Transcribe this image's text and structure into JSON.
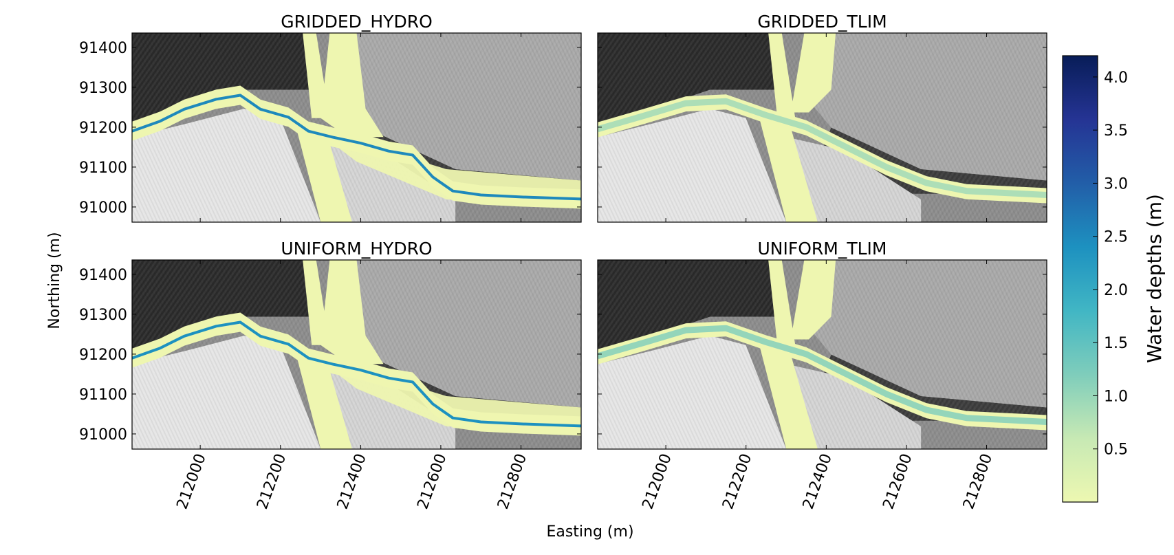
{
  "figure": {
    "xlabel": "Easting (m)",
    "ylabel": "Northing (m)"
  },
  "chart_data": [
    {
      "type": "heatmap",
      "title": "GRIDDED_HYDRO",
      "xlim": [
        211830,
        212950
      ],
      "ylim": [
        90962,
        91436
      ],
      "xticks": [
        212000,
        212200,
        212400,
        212600,
        212800
      ],
      "yticks": [
        91000,
        91100,
        91200,
        91300,
        91400
      ],
      "tick_labels_x": [
        "212000",
        "212200",
        "212400",
        "212600",
        "212800"
      ],
      "tick_labels_y": [
        "91000",
        "91100",
        "91200",
        "91300",
        "91400"
      ],
      "flood_extent": "wide",
      "main_channel_depth_m": 2.5,
      "channel": [
        [
          211830,
          91190
        ],
        [
          211900,
          91215
        ],
        [
          211960,
          91245
        ],
        [
          212040,
          91270
        ],
        [
          212100,
          91280
        ],
        [
          212150,
          91245
        ],
        [
          212220,
          91225
        ],
        [
          212270,
          91190
        ],
        [
          212330,
          91175
        ],
        [
          212400,
          91160
        ],
        [
          212470,
          91140
        ],
        [
          212530,
          91130
        ],
        [
          212580,
          91075
        ],
        [
          212630,
          91040
        ],
        [
          212700,
          91030
        ],
        [
          212800,
          91025
        ],
        [
          212950,
          91020
        ]
      ]
    },
    {
      "type": "heatmap",
      "title": "GRIDDED_TLIM",
      "xlim": [
        211830,
        212950
      ],
      "ylim": [
        90962,
        91436
      ],
      "xticks": [
        212000,
        212200,
        212400,
        212600,
        212800
      ],
      "yticks": [
        91000,
        91100,
        91200,
        91300,
        91400
      ],
      "tick_labels_x": [
        "212000",
        "212200",
        "212400",
        "212600",
        "212800"
      ],
      "tick_labels_y": [
        "91000",
        "91100",
        "91200",
        "91300",
        "91400"
      ],
      "flood_extent": "narrow",
      "main_channel_depth_m": 1.0,
      "channel": [
        [
          211830,
          91195
        ],
        [
          211950,
          91230
        ],
        [
          212050,
          91260
        ],
        [
          212150,
          91265
        ],
        [
          212250,
          91230
        ],
        [
          212350,
          91200
        ],
        [
          212450,
          91150
        ],
        [
          212550,
          91100
        ],
        [
          212650,
          91060
        ],
        [
          212750,
          91040
        ],
        [
          212950,
          91030
        ]
      ]
    },
    {
      "type": "heatmap",
      "title": "UNIFORM_HYDRO",
      "xlim": [
        211830,
        212950
      ],
      "ylim": [
        90962,
        91436
      ],
      "xticks": [
        212000,
        212200,
        212400,
        212600,
        212800
      ],
      "yticks": [
        91000,
        91100,
        91200,
        91300,
        91400
      ],
      "tick_labels_x": [
        "212000",
        "212200",
        "212400",
        "212600",
        "212800"
      ],
      "tick_labels_y": [
        "91000",
        "91100",
        "91200",
        "91300",
        "91400"
      ],
      "flood_extent": "wide",
      "main_channel_depth_m": 2.4,
      "channel": [
        [
          211830,
          91190
        ],
        [
          211900,
          91215
        ],
        [
          211960,
          91245
        ],
        [
          212040,
          91270
        ],
        [
          212100,
          91280
        ],
        [
          212150,
          91245
        ],
        [
          212220,
          91225
        ],
        [
          212270,
          91190
        ],
        [
          212330,
          91175
        ],
        [
          212400,
          91160
        ],
        [
          212470,
          91140
        ],
        [
          212530,
          91130
        ],
        [
          212580,
          91075
        ],
        [
          212630,
          91040
        ],
        [
          212700,
          91030
        ],
        [
          212800,
          91025
        ],
        [
          212950,
          91020
        ]
      ]
    },
    {
      "type": "heatmap",
      "title": "UNIFORM_TLIM",
      "xlim": [
        211830,
        212950
      ],
      "ylim": [
        90962,
        91436
      ],
      "xticks": [
        212000,
        212200,
        212400,
        212600,
        212800
      ],
      "yticks": [
        91000,
        91100,
        91200,
        91300,
        91400
      ],
      "tick_labels_x": [
        "212000",
        "212200",
        "212400",
        "212600",
        "212800"
      ],
      "tick_labels_y": [
        "91000",
        "91100",
        "91200",
        "91300",
        "91400"
      ],
      "flood_extent": "narrow",
      "main_channel_depth_m": 1.3,
      "channel": [
        [
          211830,
          91195
        ],
        [
          211950,
          91230
        ],
        [
          212050,
          91260
        ],
        [
          212150,
          91265
        ],
        [
          212250,
          91230
        ],
        [
          212350,
          91200
        ],
        [
          212450,
          91150
        ],
        [
          212550,
          91100
        ],
        [
          212650,
          91060
        ],
        [
          212750,
          91040
        ],
        [
          212950,
          91030
        ]
      ]
    }
  ],
  "colorbar": {
    "label": "Water depths (m)",
    "range": [
      0,
      4.2
    ],
    "ticks": [
      0.5,
      1.0,
      1.5,
      2.0,
      2.5,
      3.0,
      3.5,
      4.0
    ],
    "tick_labels": [
      "0.5",
      "1.0",
      "1.5",
      "2.0",
      "2.5",
      "3.0",
      "3.5",
      "4.0"
    ],
    "colormap": "YlGnBu",
    "stops": [
      "#edf8b1",
      "#c7e9b4",
      "#7fcdbb",
      "#41b6c4",
      "#1d91c0",
      "#225ea8",
      "#253494",
      "#081d58"
    ]
  },
  "colors": {
    "hillshade_dark": "#2a2a2a",
    "hillshade_mid": "#8c8c8c",
    "hillshade_light": "#e6e6e6",
    "flood_shallow": "#eef6b0"
  }
}
